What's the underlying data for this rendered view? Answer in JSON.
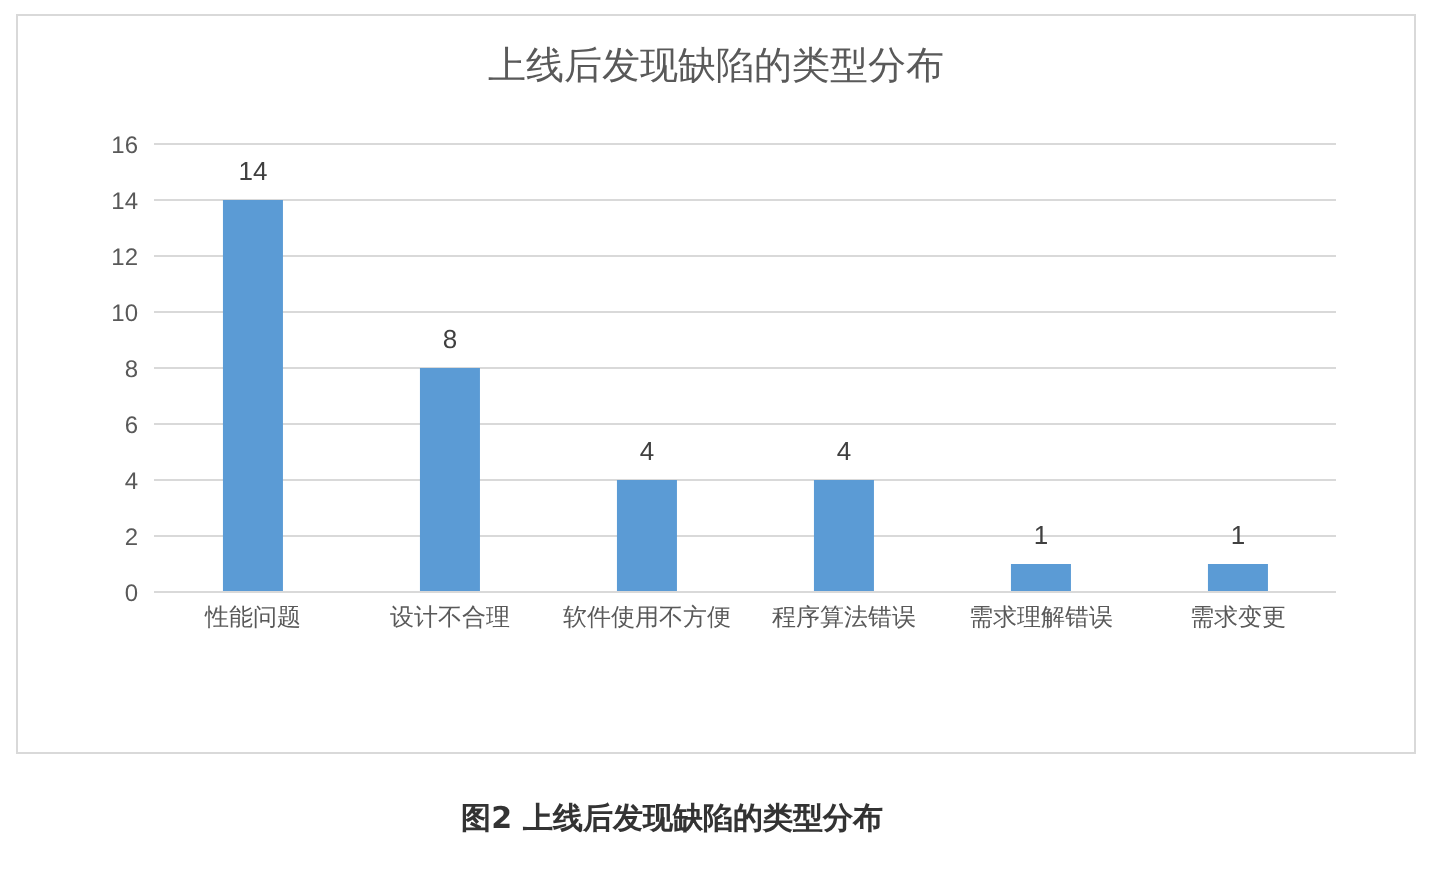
{
  "chart_data": {
    "type": "bar",
    "title": "上线后发现缺陷的类型分布",
    "categories": [
      "性能问题",
      "设计不合理",
      "软件使用不方便",
      "程序算法错误",
      "需求理解错误",
      "需求变更"
    ],
    "values": [
      14,
      8,
      4,
      4,
      1,
      1
    ],
    "color": "#5b9bd5",
    "ylim": [
      0,
      16
    ],
    "yticks": [
      0,
      2,
      4,
      6,
      8,
      10,
      12,
      14,
      16
    ],
    "grid": "y",
    "data_labels": true,
    "annotations": [
      "图2 上线后发现缺陷的类型分布"
    ]
  }
}
